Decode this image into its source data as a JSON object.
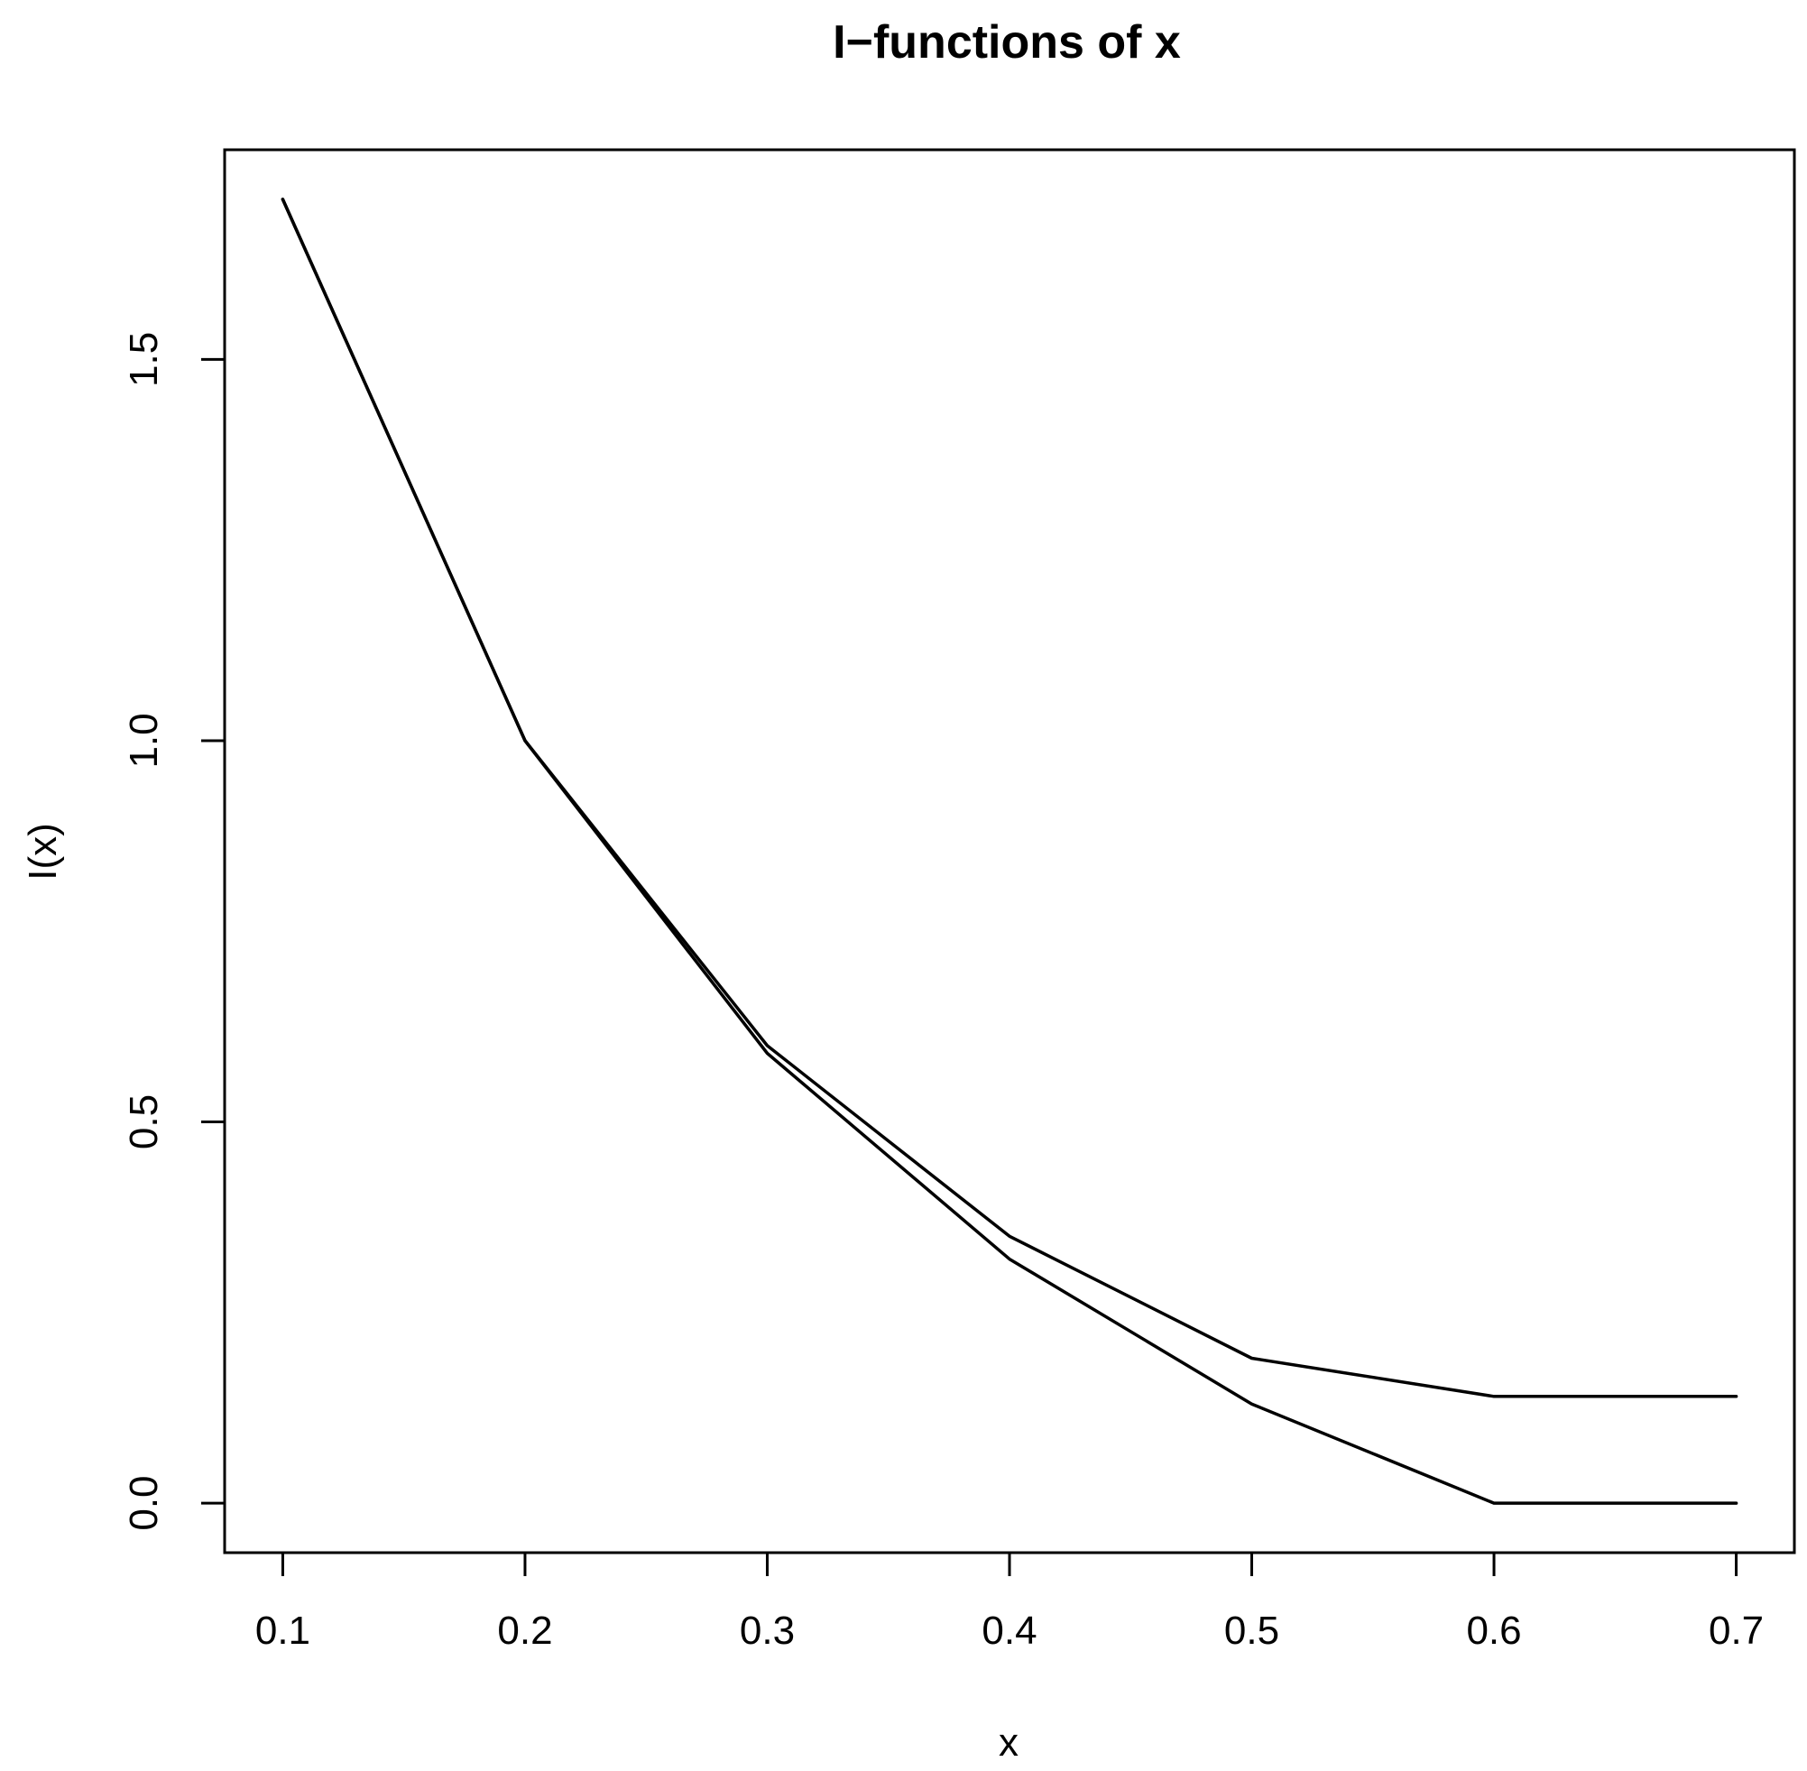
{
  "chart_data": {
    "type": "line",
    "title": "I−functions of x",
    "xlabel": "x",
    "ylabel": "I(x)",
    "xlim": [
      0.076,
      0.724
    ],
    "ylim": [
      -0.065,
      1.775
    ],
    "x_ticks": [
      0.1,
      0.2,
      0.3,
      0.4,
      0.5,
      0.6,
      0.7
    ],
    "x_tick_labels": [
      "0.1",
      "0.2",
      "0.3",
      "0.4",
      "0.5",
      "0.6",
      "0.7"
    ],
    "y_ticks": [
      0.0,
      0.5,
      1.0,
      1.5
    ],
    "y_tick_labels": [
      "0.0",
      "0.5",
      "1.0",
      "1.5"
    ],
    "x": [
      0.1,
      0.2,
      0.3,
      0.4,
      0.5,
      0.6,
      0.7
    ],
    "series": [
      {
        "values": [
          1.71,
          1.0,
          0.6,
          0.35,
          0.19,
          0.14,
          0.14
        ]
      },
      {
        "values": [
          1.71,
          1.0,
          0.59,
          0.32,
          0.13,
          0.0,
          0.0
        ]
      }
    ],
    "grid": false,
    "legend": "none",
    "line_color": "#000000"
  }
}
